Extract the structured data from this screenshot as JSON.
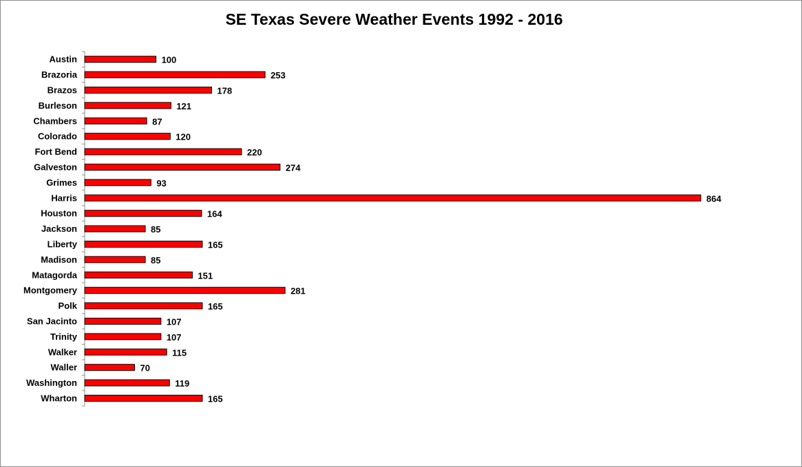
{
  "chart_data": {
    "type": "bar",
    "orientation": "horizontal",
    "title": "SE Texas Severe Weather Events 1992 - 2016",
    "xlabel": "",
    "ylabel": "",
    "categories": [
      "Austin",
      "Brazoria",
      "Brazos",
      "Burleson",
      "Chambers",
      "Colorado",
      "Fort Bend",
      "Galveston",
      "Grimes",
      "Harris",
      "Houston",
      "Jackson",
      "Liberty",
      "Madison",
      "Matagorda",
      "Montgomery",
      "Polk",
      "San Jacinto",
      "Trinity",
      "Walker",
      "Waller",
      "Washington",
      "Wharton"
    ],
    "values": [
      100,
      253,
      178,
      121,
      87,
      120,
      220,
      274,
      93,
      864,
      164,
      85,
      165,
      85,
      151,
      281,
      165,
      107,
      107,
      115,
      70,
      119,
      165
    ],
    "data_labels": [
      "100",
      "253",
      "178",
      "121",
      "87",
      "120",
      "220",
      "274",
      "93",
      "864",
      "164",
      "85",
      "165",
      "85",
      "151",
      "281",
      "165",
      "107",
      "107",
      "115",
      "70",
      "119",
      "165"
    ],
    "xlim": [
      0,
      864
    ],
    "grid": false,
    "legend": "none",
    "bar_color": "#ff0000",
    "bar_border_color": "#000000"
  }
}
